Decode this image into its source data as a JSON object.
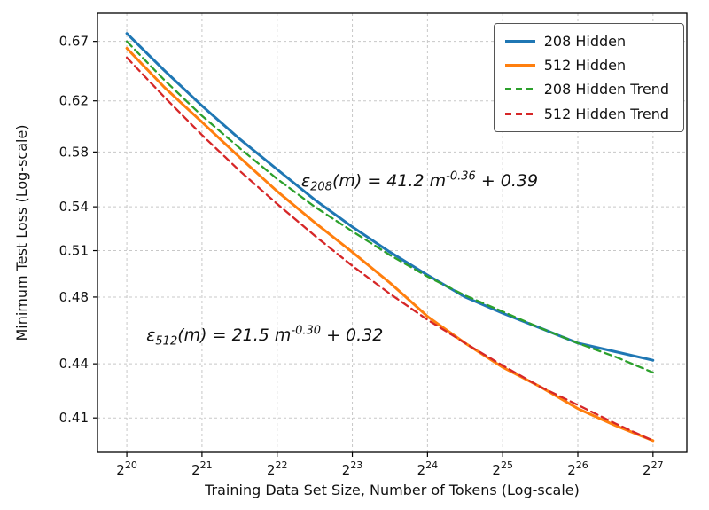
{
  "chart_data": {
    "type": "line",
    "title": "",
    "grid": true,
    "legend_position": "top-right",
    "x_axis": {
      "label": "Training Data Set Size, Number of Tokens (Log-scale)",
      "scale": "log2",
      "base": "2",
      "tick_exponents": [
        20,
        21,
        22,
        23,
        24,
        25,
        26,
        27
      ],
      "lim_log2": [
        19.61,
        27.45
      ]
    },
    "y_axis": {
      "label": "Minimum Test Loss (Log-scale)",
      "scale": "log",
      "lim": [
        0.392,
        0.695
      ],
      "ticks": [
        {
          "v": 0.67,
          "label": "0.67"
        },
        {
          "v": 0.62,
          "label": "0.62"
        },
        {
          "v": 0.58,
          "label": "0.58"
        },
        {
          "v": 0.54,
          "label": "0.54"
        },
        {
          "v": 0.51,
          "label": "0.51"
        },
        {
          "v": 0.48,
          "label": "0.48"
        },
        {
          "v": 0.44,
          "label": "0.44"
        },
        {
          "v": 0.41,
          "label": "0.41"
        }
      ]
    },
    "series": [
      {
        "name": "208 Hidden",
        "color": "#1f77b4",
        "dash": null,
        "width": 3,
        "x_log2": [
          20,
          20.5,
          21,
          21.5,
          22,
          22.5,
          23,
          23.5,
          24,
          24.5,
          25,
          25.5,
          26,
          26.5,
          27
        ],
        "y": [
          0.677,
          0.645,
          0.616,
          0.59,
          0.567,
          0.545,
          0.526,
          0.509,
          0.494,
          0.48,
          0.47,
          0.461,
          0.452,
          0.447,
          0.442
        ]
      },
      {
        "name": "512 Hidden",
        "color": "#ff7f0e",
        "dash": null,
        "width": 3,
        "x_log2": [
          20,
          20.5,
          21,
          21.5,
          22,
          22.5,
          23,
          23.5,
          24,
          24.5,
          25,
          25.5,
          26,
          26.5,
          27
        ],
        "y": [
          0.664,
          0.631,
          0.603,
          0.576,
          0.551,
          0.529,
          0.509,
          0.489,
          0.468,
          0.452,
          0.438,
          0.427,
          0.415,
          0.406,
          0.398
        ]
      },
      {
        "name": "208 Hidden Trend",
        "color": "#2ca02c",
        "dash": "8,5",
        "width": 2.3,
        "x_log2": [
          20,
          20.5,
          21,
          21.5,
          22,
          22.5,
          23,
          23.5,
          24,
          24.5,
          25,
          25.5,
          26,
          26.5,
          27
        ],
        "y": [
          0.67,
          0.637,
          0.608,
          0.583,
          0.56,
          0.54,
          0.523,
          0.507,
          0.493,
          0.481,
          0.471,
          0.461,
          0.452,
          0.444,
          0.435
        ]
      },
      {
        "name": "512 Hidden Trend",
        "color": "#d62728",
        "dash": "8,5",
        "width": 2.3,
        "x_log2": [
          20,
          20.5,
          21,
          21.5,
          22,
          22.5,
          23,
          23.5,
          24,
          24.5,
          25,
          25.5,
          26,
          26.5,
          27
        ],
        "y": [
          0.656,
          0.623,
          0.593,
          0.566,
          0.542,
          0.52,
          0.5,
          0.482,
          0.466,
          0.452,
          0.439,
          0.427,
          0.417,
          0.407,
          0.398
        ]
      }
    ],
    "annotations": [
      {
        "symbol": "ε",
        "sub": "208",
        "body": "(m) = 41.2 m",
        "sup": "-0.36",
        "tail": " + 0.39",
        "x_log2": 22.32,
        "y_anchor": 0.558
      },
      {
        "symbol": "ε",
        "sub": "512",
        "body": "(m) = 21.5 m",
        "sup": "-0.30",
        "tail": " + 0.32",
        "x_log2": 20.26,
        "y_anchor": 0.456
      }
    ]
  }
}
